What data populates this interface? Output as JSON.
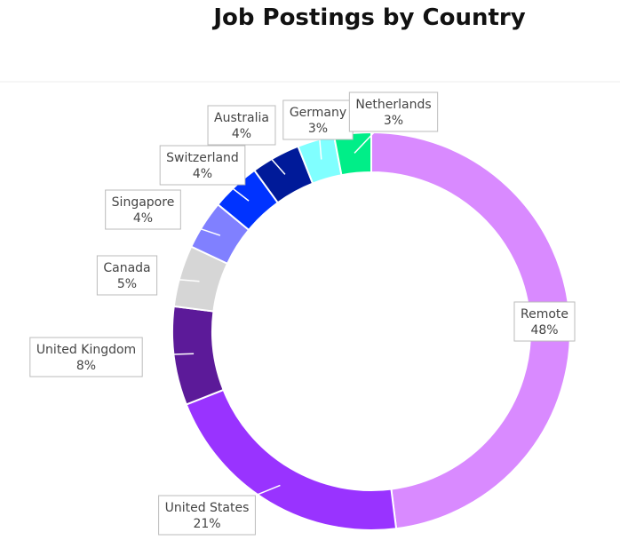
{
  "chart_data": {
    "type": "donut",
    "title": "Job Postings by Country",
    "categories": [
      "Remote",
      "United States",
      "United Kingdom",
      "Canada",
      "Singapore",
      "Switzerland",
      "Australia",
      "Germany",
      "Netherlands"
    ],
    "values": [
      48,
      21,
      8,
      5,
      4,
      4,
      4,
      3,
      3
    ],
    "value_labels": [
      "48%",
      "21%",
      "8%",
      "5%",
      "4%",
      "4%",
      "4%",
      "3%",
      "3%"
    ],
    "colors": [
      "#d98aff",
      "#9933ff",
      "#5c1a99",
      "#d6d6d6",
      "#8080ff",
      "#0033ff",
      "#001a99",
      "#80ffff",
      "#00ee88"
    ]
  }
}
